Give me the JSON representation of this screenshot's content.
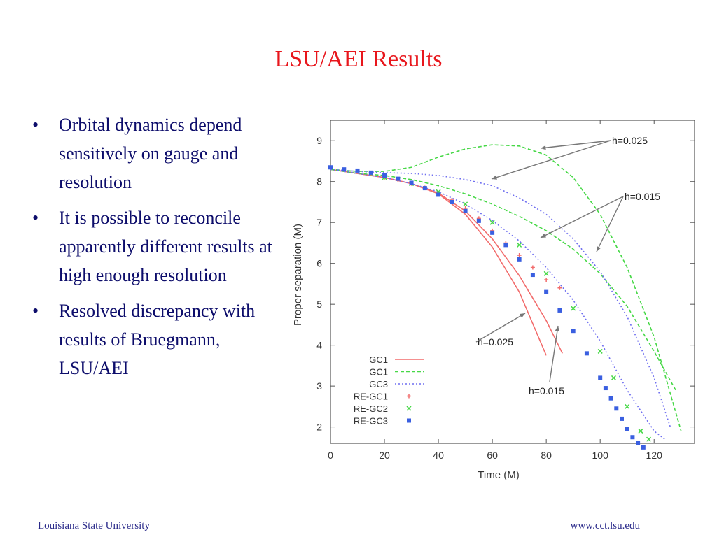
{
  "slide": {
    "title": "LSU/AEI Results",
    "bullets": [
      "Orbital dynamics depend sensitively on gauge and resolution",
      "It is possible to reconcile apparently different results at high enough resolution",
      "Resolved discrepancy with results of Bruegmann, LSU/AEI"
    ],
    "footer_left": "Louisiana State University",
    "footer_right": "www.cct.lsu.edu",
    "bullet_glyph": "•"
  },
  "chart_data": {
    "type": "line",
    "xlabel": "Time (M)",
    "ylabel": "Proper separation (M)",
    "xlim": [
      0,
      135
    ],
    "ylim": [
      1.6,
      9.5
    ],
    "xticks": [
      0,
      20,
      40,
      60,
      80,
      100,
      120
    ],
    "yticks": [
      2,
      3,
      4,
      5,
      6,
      7,
      8,
      9
    ],
    "grid": false,
    "legend_position": "bottom-left",
    "series": [
      {
        "name": "GC1",
        "style": "solid",
        "color": "#f26c6c",
        "x": [
          0,
          5,
          10,
          15,
          20,
          30,
          40,
          50,
          60,
          70,
          80
        ],
        "y": [
          8.3,
          8.25,
          8.2,
          8.15,
          8.1,
          7.95,
          7.7,
          7.2,
          6.4,
          5.3,
          3.75
        ]
      },
      {
        "name": "GC1",
        "style": "solid",
        "color": "#f26c6c",
        "x": [
          0,
          10,
          20,
          30,
          40,
          50,
          60,
          70,
          80,
          86
        ],
        "y": [
          8.3,
          8.2,
          8.1,
          7.95,
          7.72,
          7.28,
          6.6,
          5.7,
          4.6,
          3.8
        ]
      },
      {
        "name": "GC1",
        "style": "dashed",
        "color": "#47d847",
        "x": [
          0,
          10,
          20,
          30,
          40,
          50,
          60,
          70,
          80,
          90,
          100,
          110,
          120,
          130
        ],
        "y": [
          8.3,
          8.25,
          8.25,
          8.35,
          8.6,
          8.8,
          8.9,
          8.87,
          8.65,
          8.1,
          7.2,
          5.9,
          4.2,
          1.9
        ]
      },
      {
        "name": "GC1",
        "style": "dashed",
        "color": "#47d847",
        "x": [
          0,
          10,
          20,
          30,
          40,
          50,
          60,
          70,
          80,
          90,
          100,
          110,
          120,
          128
        ],
        "y": [
          8.3,
          8.2,
          8.15,
          8.05,
          7.9,
          7.7,
          7.45,
          7.15,
          6.8,
          6.35,
          5.75,
          4.95,
          3.85,
          2.9
        ]
      },
      {
        "name": "GC3",
        "style": "dotted",
        "color": "#6f6ff0",
        "x": [
          0,
          10,
          20,
          30,
          40,
          50,
          60,
          70,
          80,
          90,
          100,
          110,
          120,
          126
        ],
        "y": [
          8.3,
          8.25,
          8.22,
          8.2,
          8.15,
          8.05,
          7.9,
          7.6,
          7.2,
          6.6,
          5.8,
          4.7,
          3.2,
          2.0
        ]
      },
      {
        "name": "GC3",
        "style": "dotted",
        "color": "#6f6ff0",
        "x": [
          0,
          10,
          20,
          30,
          40,
          50,
          60,
          70,
          80,
          90,
          100,
          110,
          120,
          124
        ],
        "y": [
          8.3,
          8.2,
          8.1,
          7.95,
          7.75,
          7.45,
          7.05,
          6.55,
          5.9,
          5.1,
          4.1,
          2.9,
          1.9,
          1.7
        ]
      },
      {
        "name": "RE-GC1",
        "marker": "+",
        "color": "#f26c6c",
        "x": [
          20,
          25,
          30,
          35,
          40,
          45,
          50,
          55,
          60,
          65,
          70,
          75,
          80,
          85
        ],
        "y": [
          8.1,
          8.03,
          7.95,
          7.85,
          7.72,
          7.55,
          7.35,
          7.1,
          6.8,
          6.5,
          6.2,
          5.9,
          5.6,
          5.4
        ]
      },
      {
        "name": "RE-GC2",
        "marker": "x",
        "color": "#47d847",
        "x": [
          20,
          30,
          40,
          50,
          60,
          70,
          80,
          90,
          100,
          105,
          110,
          115,
          118
        ],
        "y": [
          8.1,
          7.95,
          7.75,
          7.45,
          7.0,
          6.45,
          5.75,
          4.9,
          3.85,
          3.2,
          2.5,
          1.9,
          1.7
        ]
      },
      {
        "name": "RE-GC3",
        "marker": "square",
        "color": "#3a5fe0",
        "x": [
          0,
          5,
          10,
          15,
          20,
          25,
          30,
          35,
          40,
          45,
          50,
          55,
          60,
          65,
          70,
          75,
          80,
          85,
          90,
          95,
          100,
          102,
          104,
          106,
          108,
          110,
          112,
          114,
          116
        ],
        "y": [
          8.35,
          8.3,
          8.27,
          8.22,
          8.15,
          8.07,
          7.97,
          7.84,
          7.68,
          7.5,
          7.28,
          7.04,
          6.75,
          6.45,
          6.1,
          5.72,
          5.3,
          4.85,
          4.35,
          3.8,
          3.2,
          2.95,
          2.7,
          2.45,
          2.2,
          1.95,
          1.75,
          1.6,
          1.5
        ]
      }
    ],
    "annotations": [
      {
        "text": "h=0.025"
      },
      {
        "text": "h=0.015"
      },
      {
        "text": "h=0.025"
      },
      {
        "text": "h=0.015"
      }
    ]
  }
}
